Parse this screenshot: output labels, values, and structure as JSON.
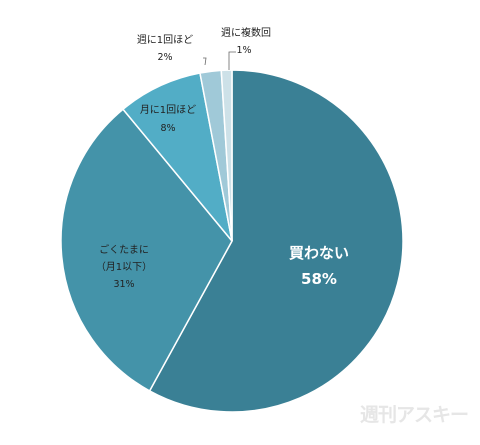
{
  "chart_data": {
    "type": "pie",
    "start_angle_deg": 0,
    "direction": "clockwise",
    "slices": [
      {
        "label": "買わない",
        "value": 58,
        "percent_label": "58%",
        "color": "#3a8095"
      },
      {
        "label_lines": [
          "ごくたまに",
          "（月1以下）"
        ],
        "value": 31,
        "percent_label": "31%",
        "color": "#4493a9"
      },
      {
        "label": "月に1回ほど",
        "value": 8,
        "percent_label": "8%",
        "color": "#52adc6"
      },
      {
        "label": "週に1回ほど",
        "value": 2,
        "percent_label": "2%",
        "color": "#a0c9d8"
      },
      {
        "label": "週に複数回",
        "value": 1,
        "percent_label": "1%",
        "color": "#cde1e8"
      }
    ],
    "slice_border_color": "#ffffff"
  },
  "watermark": {
    "text": "週刊アスキー",
    "color": "#e6e6e6"
  }
}
